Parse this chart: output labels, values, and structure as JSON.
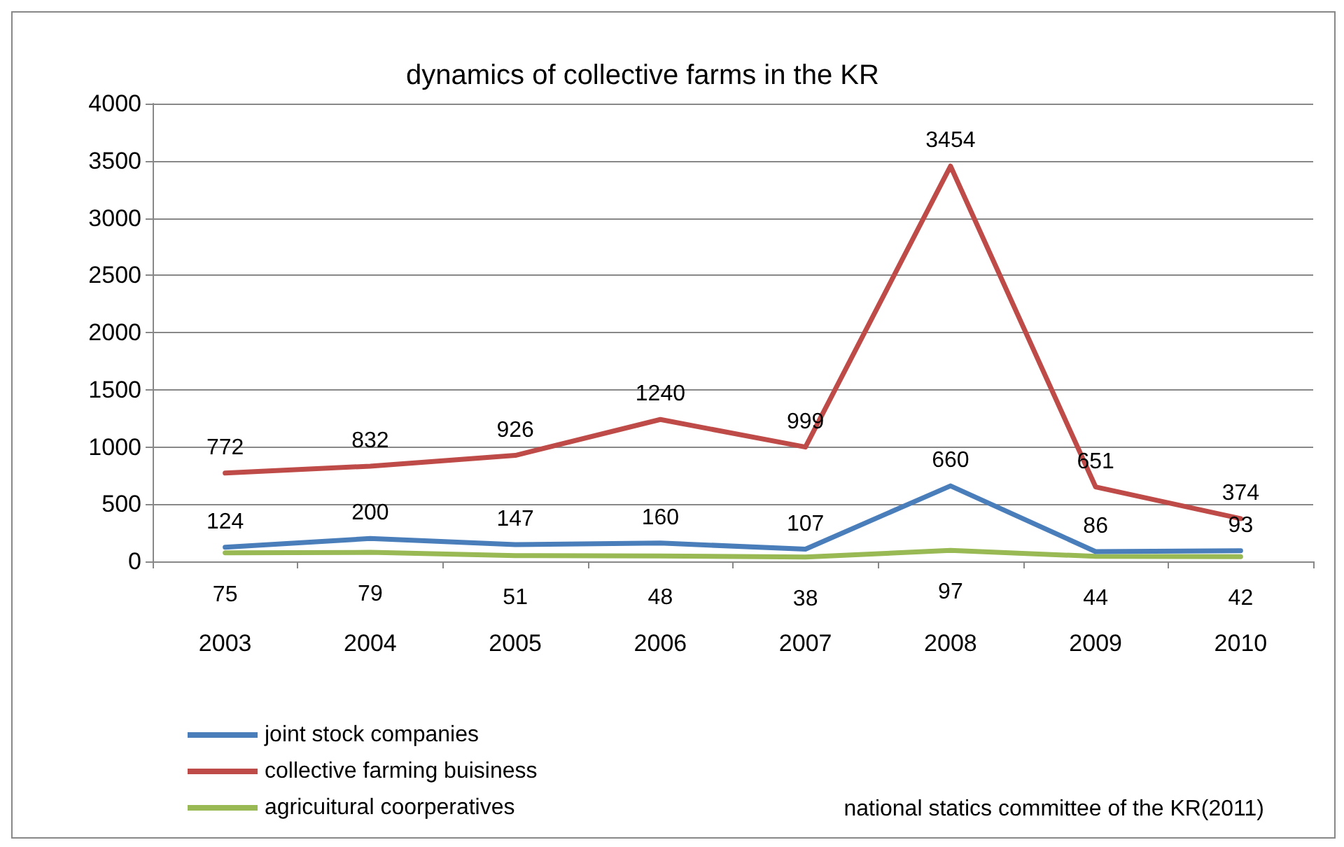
{
  "chart_data": {
    "type": "line",
    "title": "dynamics of collective farms in the KR",
    "categories": [
      "2003",
      "2004",
      "2005",
      "2006",
      "2007",
      "2008",
      "2009",
      "2010"
    ],
    "series": [
      {
        "name": "joint stock companies",
        "color": "#4a7ebb",
        "values": [
          124,
          200,
          147,
          160,
          107,
          660,
          86,
          93
        ]
      },
      {
        "name": "collective farming buisiness",
        "color": "#be4b48",
        "values": [
          772,
          832,
          926,
          1240,
          999,
          3454,
          651,
          374
        ]
      },
      {
        "name": "agricuitural coorperatives",
        "color": "#98b954",
        "values": [
          75,
          79,
          51,
          48,
          38,
          97,
          44,
          42
        ]
      }
    ],
    "ylim": [
      0,
      4000
    ],
    "yticks": [
      0,
      500,
      1000,
      1500,
      2000,
      2500,
      3000,
      3500,
      4000
    ],
    "grid": "y",
    "legend": "bottom left",
    "data_labels": true,
    "marker": "none",
    "line_style": "solid",
    "annotations": [
      "national statics committee of the KR(2011)"
    ]
  }
}
